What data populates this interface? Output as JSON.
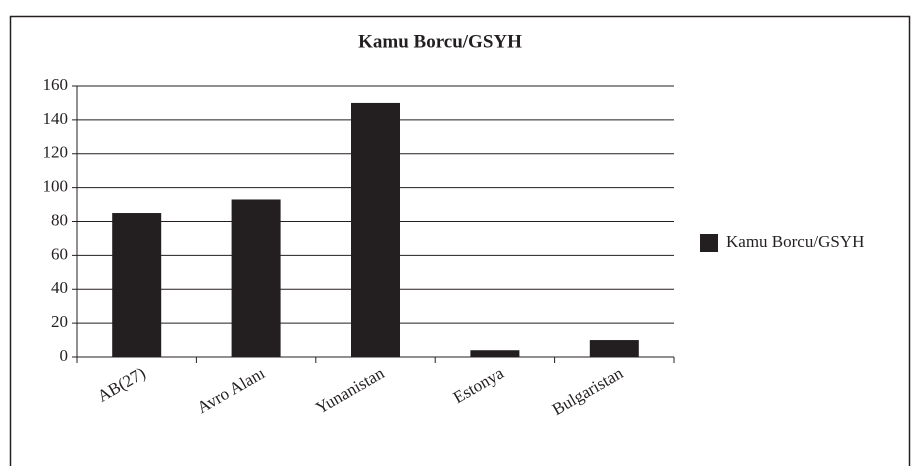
{
  "chart_data": {
    "type": "bar",
    "title": "Kamu Borcu/GSYH",
    "categories": [
      "AB(27)",
      "Avro Alanı",
      "Yunanistan",
      "Estonya",
      "Bulgaristan"
    ],
    "series": [
      {
        "name": "Kamu Borcu/GSYH",
        "color": "#231f20",
        "values": [
          85,
          93,
          150,
          4,
          10
        ]
      }
    ],
    "ylim": [
      0,
      160
    ],
    "yticks": [
      0,
      20,
      40,
      60,
      80,
      100,
      120,
      140,
      160
    ],
    "grid": true,
    "legend": "right"
  }
}
